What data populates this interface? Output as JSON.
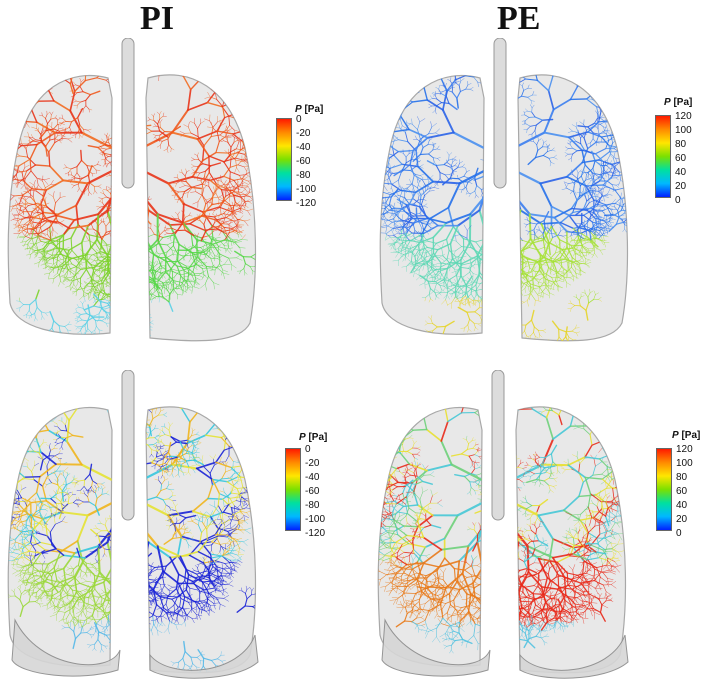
{
  "columns": {
    "left_title": "PI",
    "right_title": "PE"
  },
  "colorbars": {
    "label_symbol": "P",
    "label_unit": "[Pa]",
    "pi_ticks": [
      "0",
      "-20",
      "-40",
      "-60",
      "-80",
      "-100",
      "-120"
    ],
    "pe_ticks": [
      "120",
      "100",
      "80",
      "60",
      "40",
      "20",
      "0"
    ],
    "gradient_top": "#ff1a00",
    "gradient_bottom": "#0020ff"
  },
  "panels": [
    {
      "id": "pi-top",
      "scheme": [
        "#e8351a",
        "#f05a1e",
        "#e8351a",
        "#f26c22"
      ],
      "lower_left": "#7dd32c",
      "lower_right": "#58d74a",
      "bottom": "#59d0e6"
    },
    {
      "id": "pe-top",
      "scheme": [
        "#2b63e8",
        "#3b7ff0",
        "#2570ea",
        "#4a90f0"
      ],
      "lower_left": "#5fd8b5",
      "lower_right": "#a6e236",
      "bottom": "#e6d42a"
    },
    {
      "id": "pi-bottom",
      "scheme": [
        "#1a23d6",
        "#f0b51d",
        "#36c7de",
        "#e5e334"
      ],
      "lower_left": "#9bd83b",
      "lower_right": "#1a23d6",
      "bottom": "#55b8e8"
    },
    {
      "id": "pe-bottom",
      "scheme": [
        "#e82a1a",
        "#46c8d6",
        "#6ed17a",
        "#e8e030"
      ],
      "lower_left": "#e87a1a",
      "lower_right": "#e82a1a",
      "bottom": "#53c2e0"
    }
  ]
}
